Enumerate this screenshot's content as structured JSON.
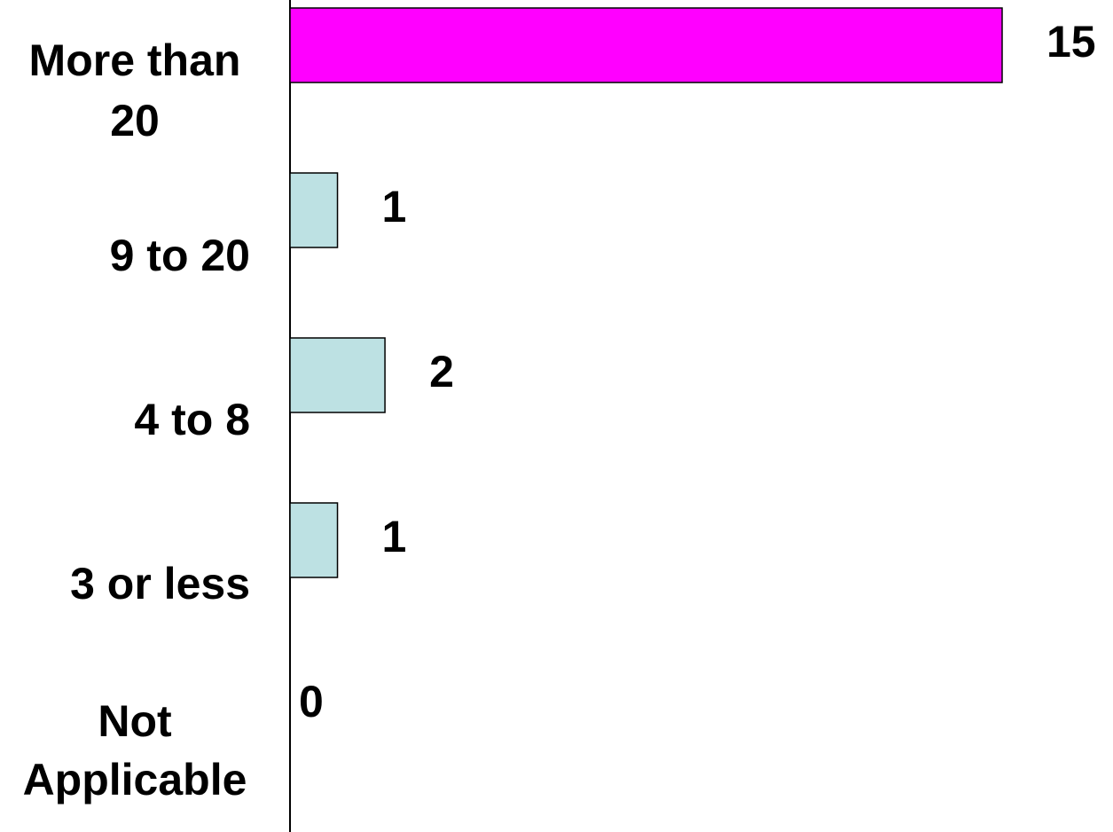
{
  "chart_data": {
    "type": "bar",
    "orientation": "horizontal",
    "title": "",
    "xlabel": "",
    "ylabel": "",
    "categories": [
      [
        "More than",
        "20"
      ],
      [
        "9 to 20"
      ],
      [
        "4 to 8"
      ],
      [
        "3 or less"
      ],
      [
        "Not",
        "Applicable"
      ]
    ],
    "values": [
      15,
      1,
      2,
      1,
      0
    ],
    "value_labels": [
      "15",
      "1",
      "2",
      "1",
      "0"
    ],
    "bar_colors": [
      "#ff00ff",
      "#bde1e3",
      "#bde1e3",
      "#bde1e3",
      "#bde1e3"
    ],
    "xlim": [
      0,
      15
    ],
    "grid": false,
    "legend": "none"
  }
}
